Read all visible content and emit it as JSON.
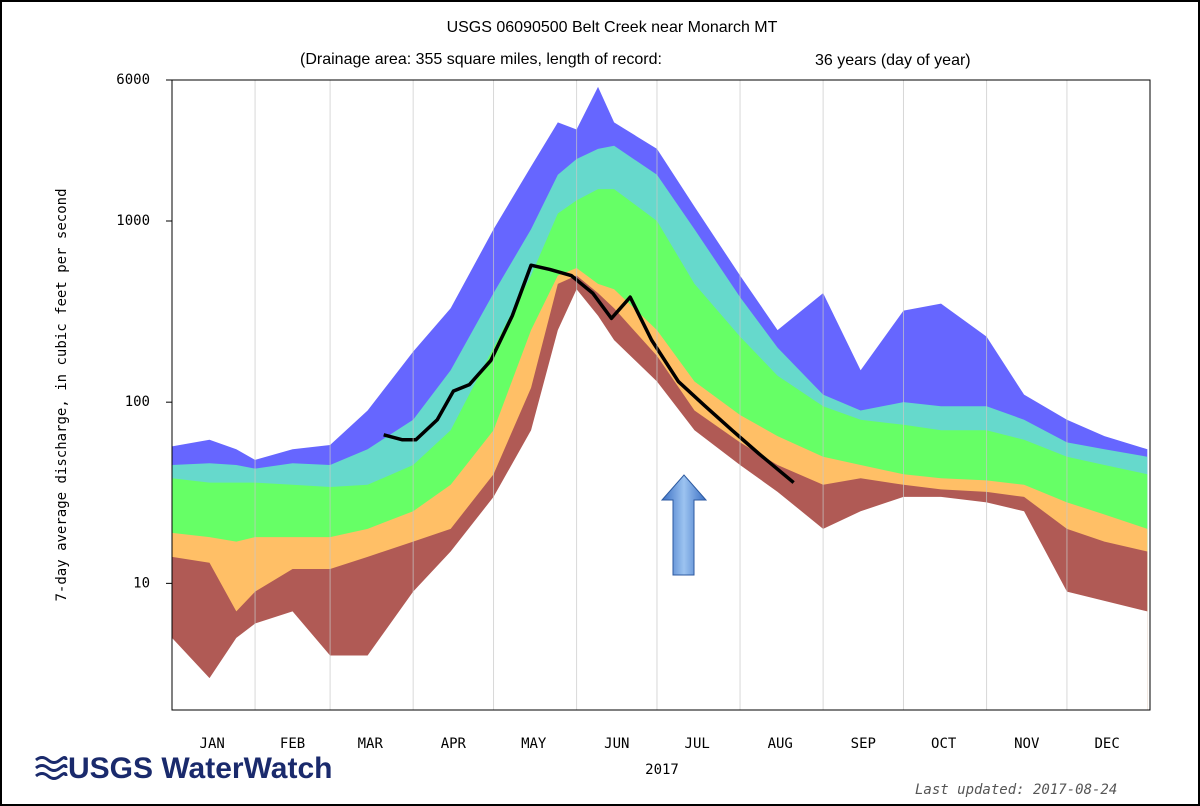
{
  "chart_data": {
    "type": "area",
    "title": "USGS 06090500 Belt Creek near Monarch MT",
    "subtitle": "(Drainage area: 355 square miles, length of record:",
    "annotation": "36 years (day of year)",
    "ylabel": "7-day average discharge, in cubic feet per second",
    "xlabel": "2017",
    "logo": "USGS WaterWatch",
    "updated": "Last updated: 2017-08-24",
    "log_y": true,
    "grid": true,
    "xlim": [
      1,
      366
    ],
    "ylim": [
      2,
      6000
    ],
    "yticks": [
      10,
      100,
      1000,
      6000
    ],
    "xticks": [
      {
        "value": 16,
        "label": "JAN"
      },
      {
        "value": 46,
        "label": "FEB"
      },
      {
        "value": 75,
        "label": "MAR"
      },
      {
        "value": 106,
        "label": "APR"
      },
      {
        "value": 136,
        "label": "MAY"
      },
      {
        "value": 167,
        "label": "JUN"
      },
      {
        "value": 197,
        "label": "JUL"
      },
      {
        "value": 228,
        "label": "AUG"
      },
      {
        "value": 259,
        "label": "SEP"
      },
      {
        "value": 289,
        "label": "OCT"
      },
      {
        "value": 320,
        "label": "NOV"
      },
      {
        "value": 350,
        "label": "DEC"
      }
    ],
    "xgrid": [
      1,
      32,
      60,
      91,
      121,
      152,
      182,
      213,
      244,
      274,
      305,
      335,
      366
    ],
    "x": [
      1,
      15,
      25,
      32,
      46,
      60,
      74,
      91,
      105,
      121,
      135,
      145,
      152,
      160,
      166,
      182,
      196,
      213,
      227,
      244,
      258,
      274,
      288,
      305,
      319,
      335,
      349,
      365
    ],
    "series": [
      {
        "color": "#6666ff",
        "values": [
          57,
          62,
          55,
          48,
          55,
          58,
          90,
          190,
          330,
          900,
          2000,
          3500,
          3200,
          5500,
          3500,
          2500,
          1200,
          500,
          250,
          400,
          150,
          320,
          350,
          230,
          110,
          80,
          65,
          55
        ]
      },
      {
        "color": "#66d9cc",
        "values": [
          45,
          46,
          45,
          43,
          46,
          45,
          55,
          80,
          150,
          400,
          900,
          1800,
          2200,
          2500,
          2600,
          1800,
          900,
          380,
          200,
          110,
          90,
          100,
          95,
          95,
          80,
          60,
          55,
          50
        ]
      },
      {
        "color": "#66ff66",
        "values": [
          38,
          36,
          36,
          36,
          35,
          34,
          35,
          45,
          70,
          200,
          500,
          1100,
          1300,
          1500,
          1500,
          1000,
          450,
          230,
          140,
          95,
          80,
          75,
          70,
          70,
          62,
          50,
          45,
          40
        ]
      },
      {
        "color": "#ffbf66",
        "values": [
          19,
          18,
          17,
          18,
          18,
          18,
          20,
          25,
          35,
          70,
          250,
          500,
          550,
          450,
          420,
          250,
          130,
          85,
          65,
          50,
          45,
          40,
          38,
          37,
          35,
          28,
          24,
          20
        ]
      },
      {
        "color": "#b05a55",
        "values": [
          14,
          13,
          7,
          9,
          12,
          12,
          14,
          17,
          20,
          40,
          120,
          450,
          500,
          400,
          330,
          180,
          90,
          60,
          45,
          35,
          38,
          35,
          33,
          32,
          30,
          20,
          17,
          15
        ]
      },
      {
        "color": "#ffffff",
        "values": [
          5,
          3,
          5,
          6,
          7,
          4,
          4,
          9,
          15,
          30,
          70,
          250,
          420,
          300,
          220,
          130,
          70,
          45,
          32,
          20,
          25,
          30,
          30,
          28,
          25,
          9,
          8,
          7
        ]
      }
    ],
    "current": {
      "color": "#000000",
      "x": [
        80,
        87,
        92,
        100,
        106,
        112,
        120,
        128,
        135,
        142,
        150,
        158,
        165,
        172,
        180,
        190,
        200,
        210,
        220,
        233
      ],
      "values": [
        66,
        62,
        62,
        80,
        115,
        125,
        170,
        300,
        570,
        540,
        500,
        400,
        290,
        380,
        220,
        130,
        95,
        70,
        52,
        36
      ]
    }
  }
}
